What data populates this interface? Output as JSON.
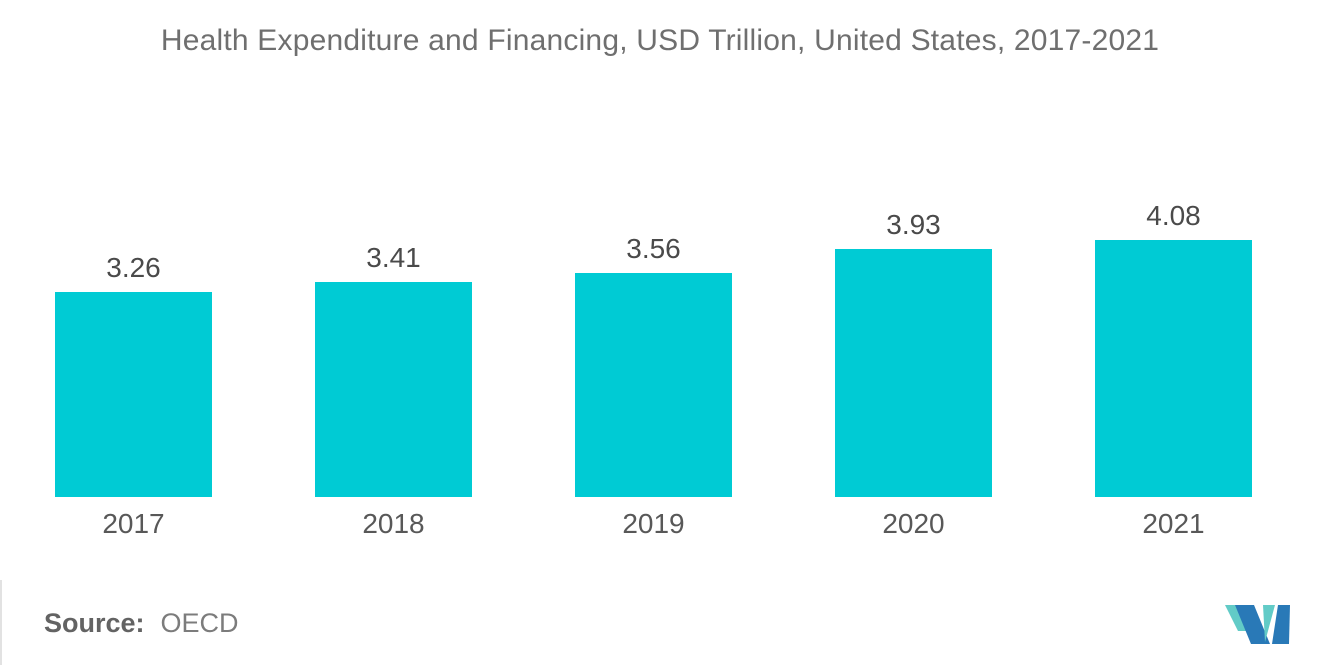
{
  "title": "Health Expenditure and Financing, USD Trillion, United States, 2017-2021",
  "source": {
    "label": "Source:",
    "value": "OECD"
  },
  "logo": {
    "name": "mordor-intelligence-logo"
  },
  "colors": {
    "bar": "#00CBD4",
    "title_text": "#6f6f6f",
    "value_label_text": "#4a4a4a",
    "axis_label_text": "#585858",
    "logo_blue": "#2979B7",
    "logo_teal": "#62CBC7"
  },
  "chart_data": {
    "type": "bar",
    "title": "Health Expenditure and Financing, USD Trillion, United States, 2017-2021",
    "categories": [
      "2017",
      "2018",
      "2019",
      "2020",
      "2021"
    ],
    "values": [
      3.26,
      3.41,
      3.56,
      3.93,
      4.08
    ],
    "data_labels": [
      "3.26",
      "3.41",
      "3.56",
      "3.93",
      "4.08"
    ],
    "xlabel": "",
    "ylabel": "",
    "ylim": [
      0,
      4.5
    ],
    "grid": false,
    "legend": false,
    "axis_lines": false,
    "bar_color": "#00CBD4"
  }
}
